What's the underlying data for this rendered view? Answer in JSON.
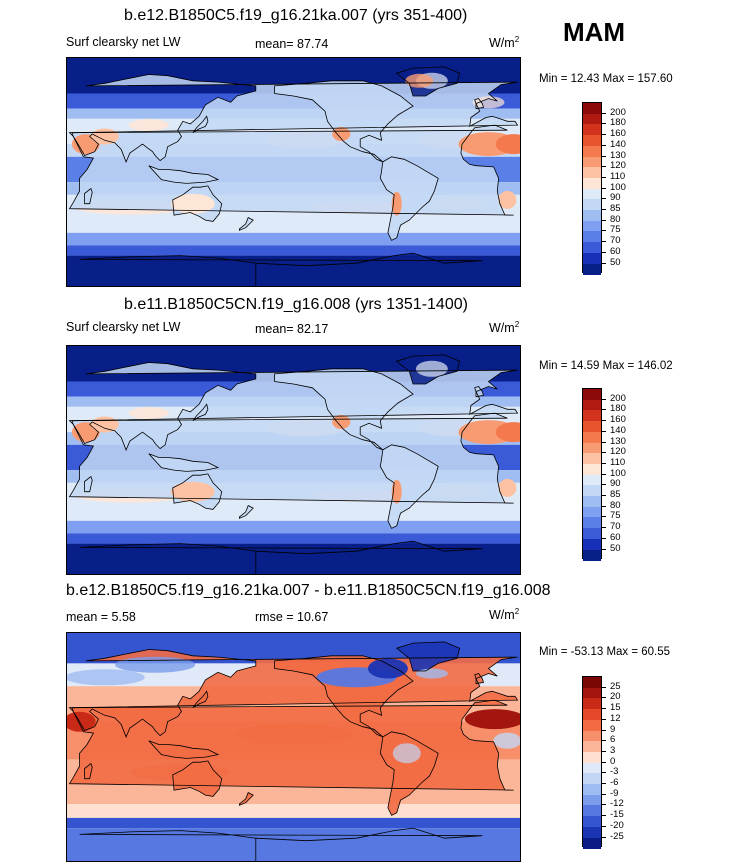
{
  "season": "MAM",
  "panels": [
    {
      "title": "b.e12.B1850C5.f19_g16.21ka.007 (yrs 351-400)",
      "left_label": "Surf clearsky net LW",
      "mid_label": "mean=  87.74",
      "units_base": "W/m",
      "units_exp": "2",
      "minmax": "Min =  12.43 Max = 157.60",
      "palette": "abs"
    },
    {
      "title": "b.e11.B1850C5CN.f19_g16.008 (yrs 1351-1400)",
      "left_label": "Surf clearsky net LW",
      "mid_label": "mean=  82.17",
      "units_base": "W/m",
      "units_exp": "2",
      "minmax": "Min =  14.59 Max = 146.02",
      "palette": "abs"
    },
    {
      "title": "b.e12.B1850C5.f19_g16.21ka.007 - b.e11.B1850C5CN.f19_g16.008",
      "left_label": "mean =   5.58",
      "mid_label": "rmse =  10.67",
      "units_base": "W/m",
      "units_exp": "2",
      "minmax": "Min = -53.13 Max =  60.55",
      "palette": "diff"
    }
  ],
  "colorbars": {
    "abs": {
      "labels": [
        "200",
        "180",
        "160",
        "140",
        "130",
        "120",
        "110",
        "100",
        "90",
        "85",
        "80",
        "75",
        "70",
        "60",
        "50"
      ],
      "colors": [
        "#8c0a0a",
        "#b01a10",
        "#d3331c",
        "#e8542e",
        "#f47a4e",
        "#f99b72",
        "#fcc2a3",
        "#fde6d6",
        "#dfeaf8",
        "#c3d8f5",
        "#9fbdf0",
        "#7f9ff0",
        "#5a7fe6",
        "#3a5ad8",
        "#1830b8",
        "#081e88"
      ]
    },
    "diff": {
      "labels": [
        "25",
        "20",
        "15",
        "12",
        "9",
        "6",
        "3",
        "0",
        "-3",
        "-6",
        "-9",
        "-12",
        "-15",
        "-20",
        "-25"
      ],
      "colors": [
        "#7a0606",
        "#a3160e",
        "#c92a18",
        "#e5472a",
        "#f26b44",
        "#f7906a",
        "#fbb598",
        "#fde0cf",
        "#dfe9f8",
        "#c3d6f4",
        "#9fbcf0",
        "#7b9cea",
        "#5678e0",
        "#3454d0",
        "#1a34b4",
        "#0a1a86"
      ]
    }
  }
}
